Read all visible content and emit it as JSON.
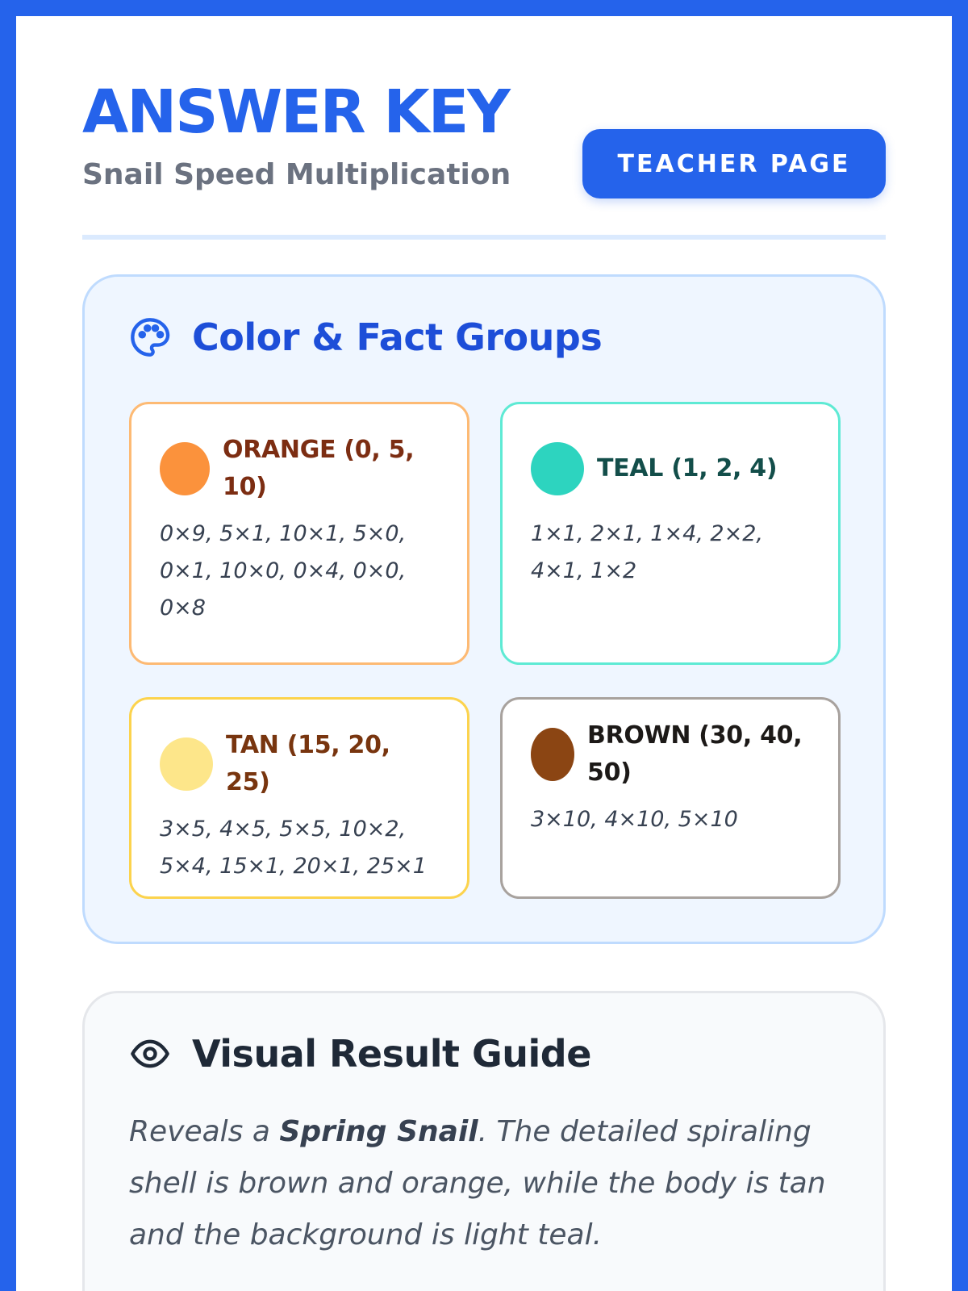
{
  "header": {
    "title": "ANSWER KEY",
    "subtitle": "Snail Speed Multiplication",
    "teacher_button": "TEACHER PAGE"
  },
  "groups": {
    "heading": "Color & Fact Groups",
    "icon": "palette-icon",
    "cards": [
      {
        "label": "ORANGE (0, 5, 10)",
        "facts": "0×9, 5×1, 10×1, 5×0, 0×1, 10×0, 0×4, 0×0, 0×8",
        "swatch_color": "#fb923c",
        "label_color": "#7c2d12",
        "border_color": "#fdba74"
      },
      {
        "label": "TEAL (1, 2, 4)",
        "facts": "1×1, 2×1, 1×4, 2×2, 4×1, 1×2",
        "swatch_color": "#2dd4bf",
        "label_color": "#134e4a",
        "border_color": "#5eead4"
      },
      {
        "label": "TAN (15, 20, 25)",
        "facts": "3×5, 4×5, 5×5, 10×2, 5×4, 15×1, 20×1, 25×1",
        "swatch_color": "#fde68a",
        "label_color": "#78350f",
        "border_color": "#fcd34d"
      },
      {
        "label": "BROWN (30, 40, 50)",
        "facts": "3×10, 4×10, 5×10",
        "swatch_color": "#8b4513",
        "label_color": "#1c1917",
        "border_color": "#a8a29e"
      }
    ]
  },
  "guide": {
    "heading": "Visual Result Guide",
    "icon": "eye-icon",
    "text_before": "Reveals a ",
    "text_emphasis": "Spring Snail",
    "text_after": ". The detailed spiraling shell is brown and orange, while the body is tan and the background is light teal."
  },
  "colors": {
    "accent": "#2563eb",
    "frame": "#2563eb",
    "groups_panel_bg": "#eff6ff",
    "guide_panel_bg": "#f8fafc"
  }
}
